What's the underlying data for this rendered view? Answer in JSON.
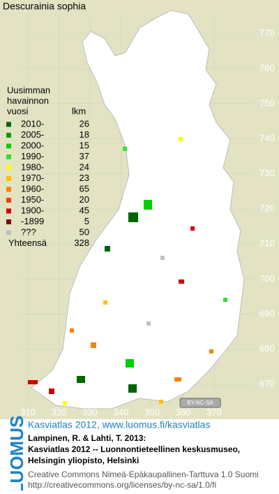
{
  "map": {
    "title": "Descurainia sophia",
    "legend": {
      "header": [
        "Uusimman",
        "havainnon",
        "vuosi"
      ],
      "count_header": "lkm",
      "rows": [
        {
          "label": "2010-",
          "count": 26,
          "color": "#006400"
        },
        {
          "label": "2005-",
          "count": 18,
          "color": "#00a000"
        },
        {
          "label": "2000-",
          "count": 15,
          "color": "#00d000"
        },
        {
          "label": "1990-",
          "count": 37,
          "color": "#33e033"
        },
        {
          "label": "1980-",
          "count": 24,
          "color": "#ffff00"
        },
        {
          "label": "1970-",
          "count": 23,
          "color": "#ffc000"
        },
        {
          "label": "1960-",
          "count": 65,
          "color": "#ff8000"
        },
        {
          "label": "1950-",
          "count": 20,
          "color": "#f04000"
        },
        {
          "label": "1900-",
          "count": 45,
          "color": "#d00000"
        },
        {
          "label": "-1899",
          "count": 5,
          "color": "#800000"
        },
        {
          "label": "???",
          "count": 50,
          "color": "#c0c0c0"
        }
      ],
      "total_label": "Yhteensä",
      "total": 328
    },
    "y_grid_labels": [
      770,
      760,
      750,
      740,
      730,
      720,
      710,
      700,
      690,
      680,
      670
    ],
    "x_grid_labels": [
      310,
      320,
      330,
      340,
      350,
      360,
      370
    ],
    "license_badge": "BY-NC-SA"
  },
  "footer": {
    "logo": "LUOMUS",
    "headline": "Kasviatlas 2012, www.luomus.fi/kasviatlas",
    "citation": [
      "Lampinen, R. & Lahti, T. 2013:",
      "Kasviatlas 2012 -- Luonnontieteellinen keskusmuseo,",
      "Helsingin yliopisto, Helsinki"
    ],
    "license": [
      "Creative Commons Nimeä-Epäkaupallinen-Tarttuva 1.0 Suomi",
      "http://creativecommons.org/licenses/by-nc-sa/1.0/fi"
    ]
  }
}
